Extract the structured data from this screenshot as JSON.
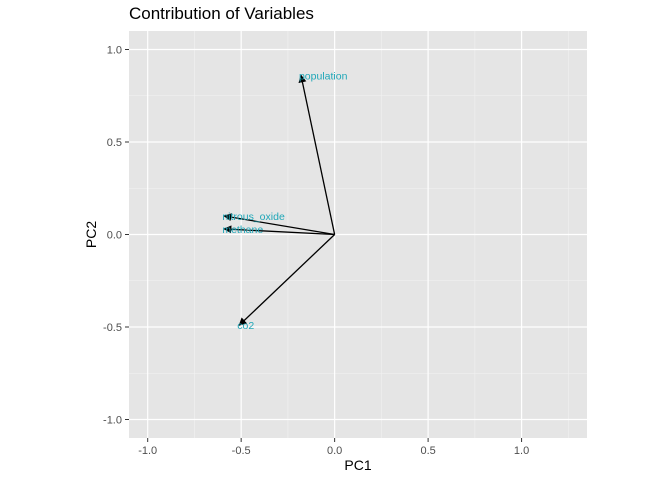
{
  "chart_data": {
    "type": "biplot-arrows",
    "title": "Contribution of Variables",
    "xlabel": "PC1",
    "ylabel": "PC2",
    "xlim": [
      -1.1,
      1.35
    ],
    "ylim": [
      -1.1,
      1.1
    ],
    "x_ticks": [
      -1.0,
      -0.5,
      0.0,
      0.5,
      1.0
    ],
    "x_tick_labels": [
      "-1.0",
      "-0.5",
      "0.0",
      "0.5",
      "1.0"
    ],
    "y_ticks": [
      -1.0,
      -0.5,
      0.0,
      0.5,
      1.0
    ],
    "y_tick_labels": [
      "-1.0",
      "-0.5",
      "0.0",
      "0.5",
      "1.0"
    ],
    "grid": true,
    "label_color": "#1fa7b8",
    "arrow_color": "#000000",
    "panel_color": "#e5e5e5",
    "vectors": [
      {
        "name": "population",
        "x": -0.18,
        "y": 0.86
      },
      {
        "name": "nitrous_oxide",
        "x": -0.59,
        "y": 0.1
      },
      {
        "name": "methane",
        "x": -0.59,
        "y": 0.03
      },
      {
        "name": "co2",
        "x": -0.51,
        "y": -0.49
      }
    ]
  }
}
